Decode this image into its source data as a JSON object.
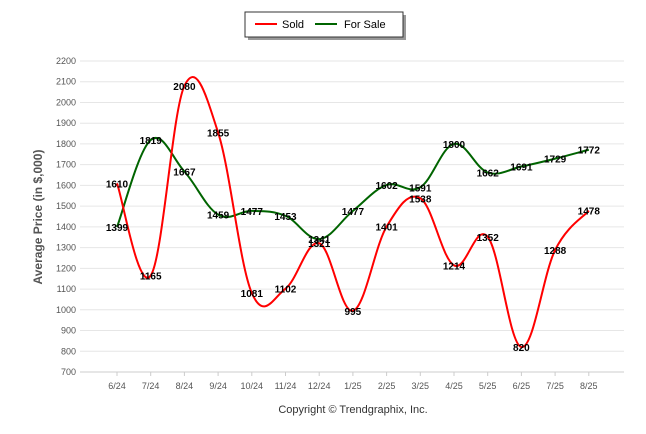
{
  "chart_data": {
    "type": "line",
    "categories": [
      "6/24",
      "7/24",
      "8/24",
      "9/24",
      "10/24",
      "11/24",
      "12/24",
      "1/25",
      "2/25",
      "3/25",
      "4/25",
      "5/25",
      "6/25",
      "7/25",
      "8/25"
    ],
    "series": [
      {
        "name": "Sold",
        "color": "#ff0000",
        "values": [
          1610,
          1165,
          2080,
          1855,
          1081,
          1102,
          1321,
          995,
          1401,
          1538,
          1214,
          1352,
          820,
          1288,
          1478
        ]
      },
      {
        "name": "For Sale",
        "color": "#006400",
        "values": [
          1399,
          1819,
          1667,
          1459,
          1477,
          1453,
          1341,
          1477,
          1602,
          1591,
          1800,
          1662,
          1691,
          1729,
          1772
        ]
      }
    ],
    "ylabel": "Average Price (in $,000)",
    "ylim": [
      700,
      2200
    ],
    "yticks": [
      700,
      800,
      900,
      1000,
      1100,
      1200,
      1300,
      1400,
      1500,
      1600,
      1700,
      1800,
      1900,
      2000,
      2100,
      2200
    ],
    "grid": true,
    "legend": "top-center",
    "data_labels": true
  },
  "copyright": "Copyright © Trendgraphix, Inc."
}
